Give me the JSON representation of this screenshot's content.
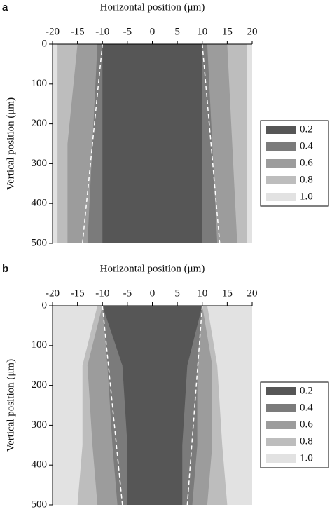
{
  "chart_data": [
    {
      "type": "contour",
      "panel_label": "a",
      "xlabel": "Horizontal position (μm)",
      "ylabel": "Vertical position (μm)",
      "xlim": [
        -20,
        20
      ],
      "xticks": [
        -20,
        -15,
        -10,
        -5,
        0,
        5,
        10,
        15,
        20
      ],
      "ylim": [
        0,
        500
      ],
      "yticks": [
        0,
        100,
        200,
        300,
        400,
        500
      ],
      "y_inverted": true,
      "levels": [
        0.2,
        0.4,
        0.6,
        0.8,
        1
      ],
      "level_labels": [
        "0.2",
        "0.4",
        "0.6",
        "0.8",
        "1.0"
      ],
      "colors": [
        "#565656",
        "#7b7b7b",
        "#9c9c9c",
        "#bdbdbd",
        "#e2e2e2"
      ],
      "contours": [
        {
          "level": 1,
          "y": [
            0,
            500
          ],
          "left": [
            -20,
            -20
          ],
          "right": [
            20,
            20
          ]
        },
        {
          "level": 0.8,
          "y": [
            0,
            250,
            500
          ],
          "left": [
            -19,
            -19,
            -19
          ],
          "right": [
            19,
            19,
            19
          ]
        },
        {
          "level": 0.6,
          "y": [
            0,
            250,
            500
          ],
          "left": [
            -15,
            -17,
            -17
          ],
          "right": [
            15,
            16,
            17
          ]
        },
        {
          "level": 0.4,
          "y": [
            0,
            250,
            500
          ],
          "left": [
            -11,
            -12,
            -13
          ],
          "right": [
            11,
            12,
            13
          ]
        },
        {
          "level": 0.2,
          "y": [
            0,
            500
          ],
          "left": [
            -10,
            -10
          ],
          "right": [
            10,
            10
          ]
        }
      ],
      "dashed": [
        {
          "x": [
            -10,
            -14
          ],
          "y": [
            0,
            500
          ]
        },
        {
          "x": [
            10,
            13.5
          ],
          "y": [
            0,
            500
          ]
        }
      ]
    },
    {
      "type": "contour",
      "panel_label": "b",
      "xlabel": "Horizontal position (μm)",
      "ylabel": "Vertical position (μm)",
      "xlim": [
        -20,
        20
      ],
      "xticks": [
        -20,
        -15,
        -10,
        -5,
        0,
        5,
        10,
        15,
        20
      ],
      "ylim": [
        0,
        500
      ],
      "yticks": [
        0,
        100,
        200,
        300,
        400,
        500
      ],
      "y_inverted": true,
      "levels": [
        0.2,
        0.4,
        0.6,
        0.8,
        1
      ],
      "level_labels": [
        "0.2",
        "0.4",
        "0.6",
        "0.8",
        "1.0"
      ],
      "colors": [
        "#565656",
        "#7b7b7b",
        "#9c9c9c",
        "#bdbdbd",
        "#e2e2e2"
      ],
      "contours": [
        {
          "level": 1,
          "y": [
            0,
            500
          ],
          "left": [
            -20,
            -20
          ],
          "right": [
            20,
            20
          ]
        },
        {
          "level": 0.8,
          "y": [
            0,
            150,
            350,
            500
          ],
          "left": [
            -11,
            -14,
            -14,
            -15
          ],
          "right": [
            11,
            13,
            14,
            15
          ]
        },
        {
          "level": 0.6,
          "y": [
            0,
            150,
            350,
            500
          ],
          "left": [
            -10,
            -13,
            -12,
            -11
          ],
          "right": [
            10,
            12,
            12,
            11
          ]
        },
        {
          "level": 0.4,
          "y": [
            0,
            150,
            350,
            500
          ],
          "left": [
            -10,
            -9,
            -8,
            -7
          ],
          "right": [
            10,
            9,
            9,
            8
          ]
        },
        {
          "level": 0.2,
          "y": [
            0,
            150,
            350,
            500
          ],
          "left": [
            -10,
            -6,
            -5,
            -5
          ],
          "right": [
            10,
            7,
            6,
            6
          ]
        }
      ],
      "dashed": [
        {
          "x": [
            -10,
            -6
          ],
          "y": [
            0,
            500
          ]
        },
        {
          "x": [
            10,
            7
          ],
          "y": [
            0,
            500
          ]
        }
      ]
    }
  ]
}
